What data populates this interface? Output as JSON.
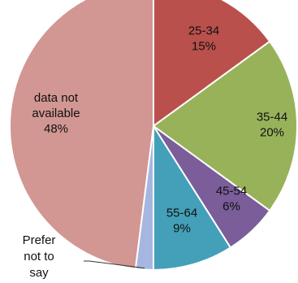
{
  "chart_data": {
    "type": "pie",
    "start_angle_deg": 0,
    "direction": "clockwise",
    "slices": [
      {
        "category": "25-34",
        "percent_label": "15%",
        "value": 15,
        "color": "#b9504c"
      },
      {
        "category": "35-44",
        "percent_label": "20%",
        "value": 20,
        "color": "#98b25a"
      },
      {
        "category": "45-54",
        "percent_label": "6%",
        "value": 6,
        "color": "#7b5d9a"
      },
      {
        "category": "55-64",
        "percent_label": "9%",
        "value": 9,
        "color": "#43a0b8"
      },
      {
        "category": "Prefer not to say",
        "percent_label": "",
        "value": 2,
        "color": "#a5b7e0"
      },
      {
        "category": "data not available",
        "percent_label": "48%",
        "value": 48,
        "color": "#d29693"
      }
    ]
  }
}
